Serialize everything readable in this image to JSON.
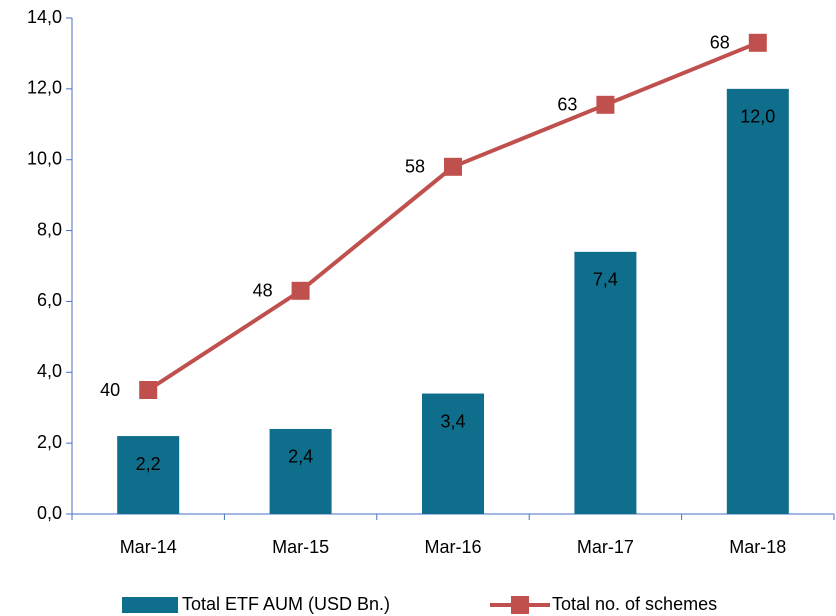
{
  "chart_data": {
    "type": "bar_line",
    "categories": [
      "Mar-14",
      "Mar-15",
      "Mar-16",
      "Mar-17",
      "Mar-18"
    ],
    "series": [
      {
        "name": "Total ETF AUM (USD Bn.)",
        "type": "bar",
        "color": "#0f6e8b",
        "values": [
          2.2,
          2.4,
          3.4,
          7.4,
          12.0
        ],
        "value_labels": [
          "2,2",
          "2,4",
          "3,4",
          "7,4",
          "12,0"
        ]
      },
      {
        "name": "Total no. of schemes",
        "type": "line",
        "axis": "y2",
        "color": "#c0504d",
        "values": [
          40,
          48,
          58,
          63,
          68
        ]
      }
    ],
    "ylim": [
      0,
      14
    ],
    "yticks": [
      {
        "value": 0,
        "label": "0,0"
      },
      {
        "value": 2,
        "label": "2,0"
      },
      {
        "value": 4,
        "label": "4,0"
      },
      {
        "value": 6,
        "label": "6,0"
      },
      {
        "value": 8,
        "label": "8,0"
      },
      {
        "value": 10,
        "label": "10,0"
      },
      {
        "value": 12,
        "label": "12,0"
      },
      {
        "value": 14,
        "label": "14,0"
      }
    ],
    "y2lim": [
      30,
      70
    ],
    "legend": "bottom"
  }
}
